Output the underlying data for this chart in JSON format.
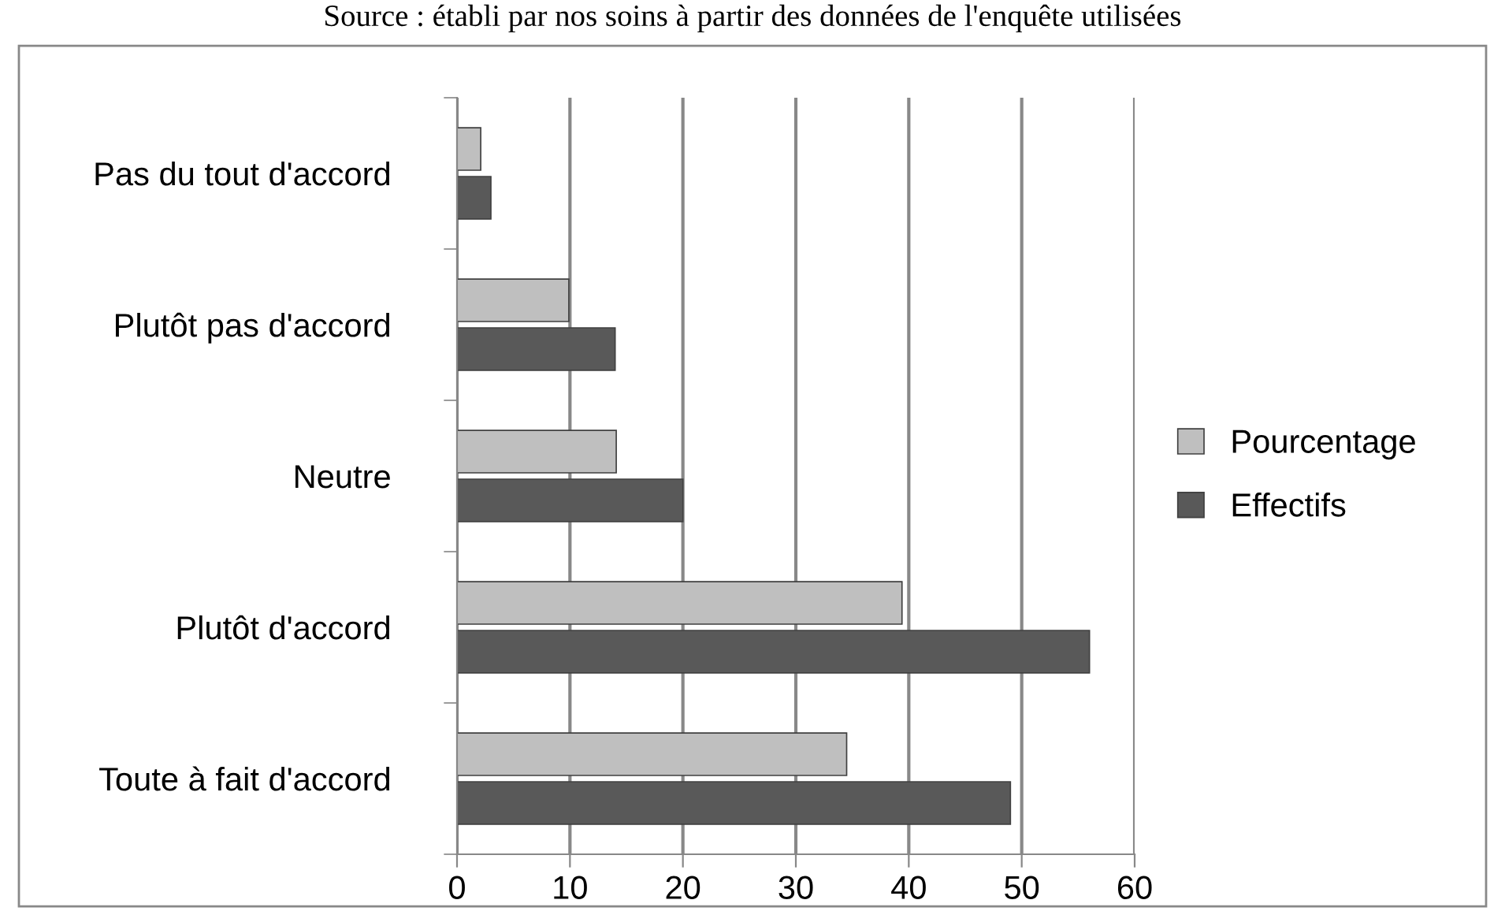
{
  "chart_data": {
    "type": "bar",
    "orientation": "horizontal",
    "categories": [
      "Pas du tout d'accord",
      "Plutôt pas d'accord",
      "Neutre",
      "Plutôt d'accord",
      "Toute à fait d'accord"
    ],
    "series": [
      {
        "name": "Pourcentage",
        "color": "#bfbfbf",
        "values": [
          2.1,
          9.9,
          14.1,
          39.4,
          34.5
        ]
      },
      {
        "name": "Effectifs",
        "color": "#595959",
        "values": [
          3,
          14,
          20,
          56,
          49
        ]
      }
    ],
    "xlim": [
      0,
      60
    ],
    "xticks": [
      0,
      10,
      20,
      30,
      40,
      50,
      60
    ],
    "grid": "x",
    "legend": "right",
    "annotations": [
      "Source : établi par nos soins à partir des données de l'enquête utilisées"
    ]
  }
}
